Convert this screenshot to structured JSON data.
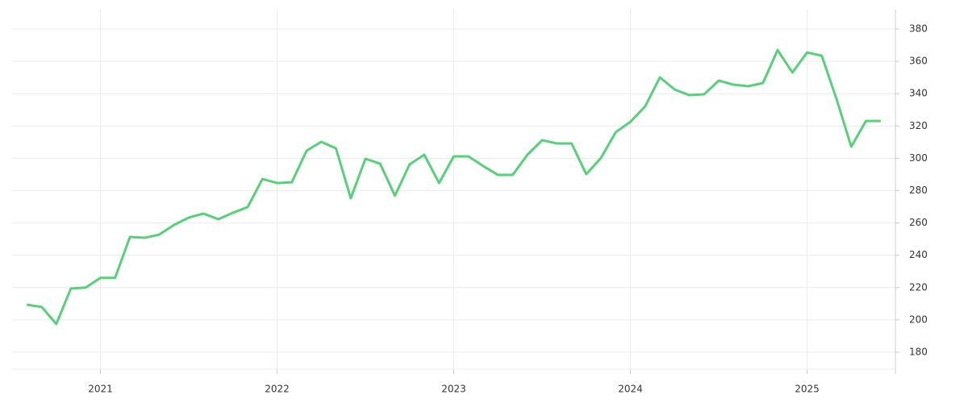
{
  "chart_data": {
    "type": "line",
    "x": [
      2020.583,
      2020.667,
      2020.75,
      2020.833,
      2020.917,
      2021.0,
      2021.083,
      2021.167,
      2021.25,
      2021.333,
      2021.417,
      2021.5,
      2021.583,
      2021.667,
      2021.75,
      2021.833,
      2021.917,
      2022.0,
      2022.083,
      2022.167,
      2022.25,
      2022.333,
      2022.417,
      2022.5,
      2022.583,
      2022.667,
      2022.75,
      2022.833,
      2022.917,
      2023.0,
      2023.083,
      2023.167,
      2023.25,
      2023.333,
      2023.417,
      2023.5,
      2023.583,
      2023.667,
      2023.75,
      2023.833,
      2023.917,
      2024.0,
      2024.083,
      2024.167,
      2024.25,
      2024.333,
      2024.417,
      2024.5,
      2024.583,
      2024.667,
      2024.75,
      2024.833,
      2024.917,
      2025.0,
      2025.083,
      2025.167,
      2025.25,
      2025.333,
      2025.417
    ],
    "series": [
      {
        "color": "#56d17a",
        "values": [
          209.4,
          208,
          197.5,
          219.4,
          220,
          226,
          226,
          251.3,
          250.8,
          252.8,
          258.8,
          263.3,
          265.8,
          262.3,
          266.3,
          269.8,
          287.2,
          284.7,
          285.2,
          304.7,
          310.2,
          306.2,
          275.3,
          299.7,
          296.7,
          276.8,
          296.2,
          302.2,
          284.7,
          301.2,
          301.2,
          295.2,
          289.7,
          289.7,
          302.2,
          311.2,
          309.2,
          309.2,
          290.2,
          300.2,
          316.2,
          322.6,
          332.1,
          350.1,
          342.6,
          339.1,
          339.6,
          348.1,
          345.6,
          344.6,
          346.6,
          367,
          353.1,
          365.5,
          363.5,
          336.6,
          307.2,
          323.1,
          323.1
        ]
      }
    ],
    "xlim": [
      2020.5,
      2025.5
    ],
    "xticks": [
      2021,
      2022,
      2023,
      2024,
      2025
    ],
    "ylim": [
      169.5,
      392
    ],
    "yticks": [
      180,
      200,
      220,
      240,
      260,
      280,
      300,
      320,
      340,
      360,
      380
    ],
    "grid": true
  }
}
